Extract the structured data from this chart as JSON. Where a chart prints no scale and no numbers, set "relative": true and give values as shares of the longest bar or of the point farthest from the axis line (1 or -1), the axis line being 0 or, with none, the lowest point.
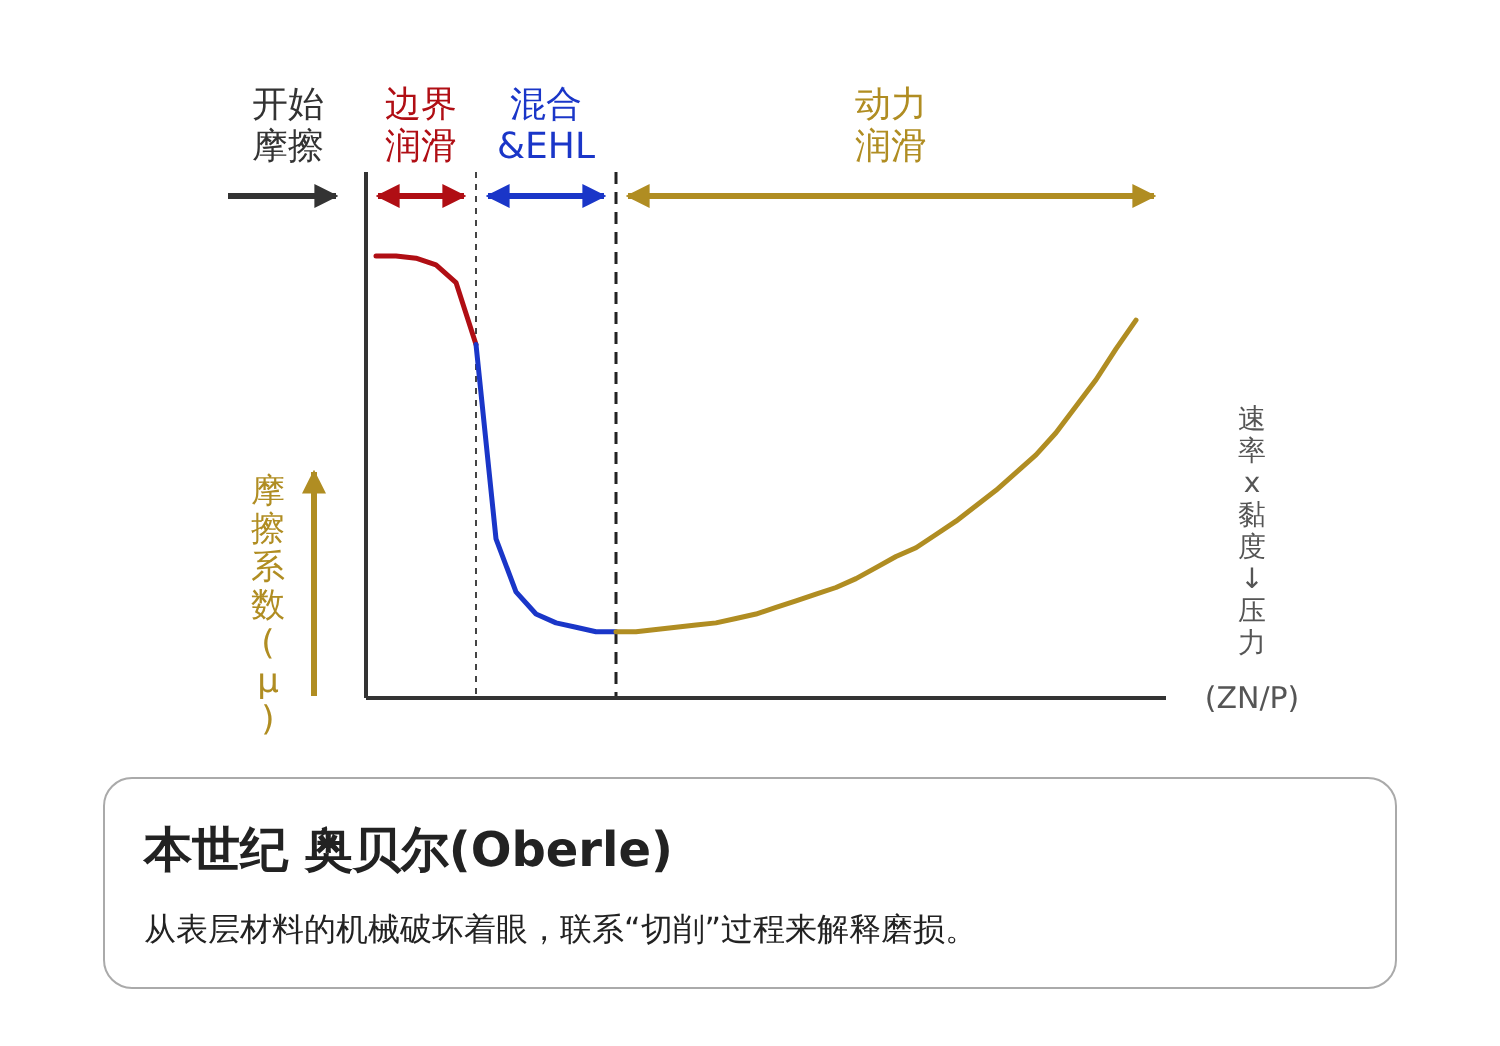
{
  "chart_data": {
    "type": "line",
    "relative": true,
    "line_style": "solid",
    "ylabel": "摩擦系数(μ)",
    "xlabel": "(ZN/P)",
    "y2label": "速率x黏度↓压力",
    "title": "本世纪 奥贝尔(Oberle)",
    "subtitle": "从表层材料的机械破坏着眼，联系“切削”过程来解释磨损。",
    "categories": [
      null,
      null,
      null,
      null,
      null,
      null,
      null,
      null,
      null,
      null,
      null,
      null,
      null,
      null,
      null,
      null,
      null,
      null,
      null,
      null,
      null,
      null,
      null,
      null,
      null,
      null,
      null,
      null,
      null,
      null,
      null,
      null,
      null,
      null,
      null,
      null,
      null,
      null,
      null
    ],
    "series": [
      {
        "color": "#b00e14",
        "values": [
          1.0,
          1.0,
          0.995,
          0.98,
          0.94,
          0.8,
          null,
          null,
          null,
          null,
          null,
          null,
          null,
          null,
          null,
          null,
          null,
          null,
          null,
          null,
          null,
          null,
          null,
          null,
          null,
          null,
          null,
          null,
          null,
          null,
          null,
          null,
          null,
          null,
          null,
          null,
          null,
          null,
          null
        ]
      },
      {
        "color": "#1a36c8",
        "values": [
          null,
          null,
          null,
          null,
          null,
          0.8,
          0.36,
          0.24,
          0.19,
          0.17,
          0.16,
          0.15,
          0.15,
          null,
          null,
          null,
          null,
          null,
          null,
          null,
          null,
          null,
          null,
          null,
          null,
          null,
          null,
          null,
          null,
          null,
          null,
          null,
          null,
          null,
          null,
          null,
          null,
          null,
          null
        ]
      },
      {
        "color": "#b08d22",
        "values": [
          null,
          null,
          null,
          null,
          null,
          null,
          null,
          null,
          null,
          null,
          null,
          null,
          0.15,
          0.15,
          0.155,
          0.16,
          0.165,
          0.17,
          0.18,
          0.19,
          0.205,
          0.22,
          0.235,
          0.25,
          0.27,
          0.295,
          0.32,
          0.34,
          0.37,
          0.4,
          0.435,
          0.47,
          0.51,
          0.55,
          0.6,
          0.66,
          0.72,
          0.79,
          0.855
        ]
      }
    ],
    "annotations": [
      "开始摩擦",
      "边界润滑",
      "混合&EHL",
      "动力润滑"
    ]
  }
}
